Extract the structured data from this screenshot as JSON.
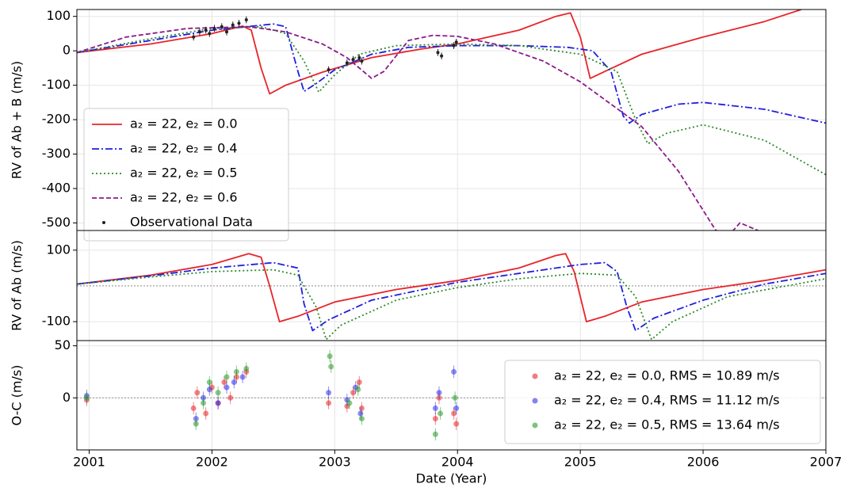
{
  "chart_data": [
    {
      "type": "line",
      "ylabel": "RV of Ab + B (m/s)",
      "xlim": [
        2000.9,
        2007
      ],
      "xticks": [
        2001,
        2002,
        2003,
        2004,
        2005,
        2006,
        2007
      ],
      "ylim": [
        -522,
        120
      ],
      "yticks": [
        -500,
        -400,
        -300,
        -200,
        -100,
        0,
        100
      ],
      "grid": true,
      "legend": "upper left",
      "series": [
        {
          "name": "a₂ = 22, e₂ = 0.0",
          "color": "#e8242a",
          "style": "solid",
          "x": [
            2000.9,
            2001.5,
            2002.0,
            2002.25,
            2002.32,
            2002.4,
            2002.47,
            2002.6,
            2002.9,
            2003.3,
            2003.7,
            2004.0,
            2004.5,
            2004.8,
            2004.92,
            2005.0,
            2005.08,
            2005.2,
            2005.5,
            2006.0,
            2006.5,
            2006.8
          ],
          "values": [
            -5,
            20,
            50,
            72,
            60,
            -50,
            -125,
            -100,
            -62,
            -20,
            5,
            20,
            60,
            100,
            110,
            40,
            -80,
            -60,
            -10,
            40,
            85,
            120
          ]
        },
        {
          "name": "a₂ = 22, e₂ = 0.4",
          "color": "#1f1fe0",
          "style": "dashdot",
          "x": [
            2000.9,
            2001.5,
            2002.0,
            2002.5,
            2002.6,
            2002.7,
            2002.75,
            2002.85,
            2003.0,
            2003.3,
            2003.6,
            2004.0,
            2004.5,
            2004.9,
            2005.1,
            2005.25,
            2005.35,
            2005.4,
            2005.5,
            2005.8,
            2006.0,
            2006.5,
            2007.0
          ],
          "values": [
            -5,
            30,
            60,
            78,
            70,
            -60,
            -118,
            -95,
            -55,
            -10,
            10,
            15,
            15,
            10,
            0,
            -60,
            -190,
            -210,
            -185,
            -155,
            -150,
            -170,
            -210
          ]
        },
        {
          "name": "a₂ = 22, e₂ = 0.5",
          "color": "#2a8a2a",
          "style": "dotted",
          "x": [
            2000.9,
            2001.5,
            2002.0,
            2002.4,
            2002.6,
            2002.75,
            2002.87,
            2003.0,
            2003.2,
            2003.5,
            2004.0,
            2004.5,
            2005.0,
            2005.3,
            2005.45,
            2005.55,
            2005.7,
            2006.0,
            2006.5,
            2007.0
          ],
          "values": [
            -5,
            35,
            65,
            70,
            50,
            -30,
            -120,
            -70,
            -10,
            15,
            20,
            15,
            -10,
            -60,
            -200,
            -270,
            -240,
            -215,
            -260,
            -360
          ]
        },
        {
          "name": "a₂ = 22, e₂ = 0.6",
          "color": "#8b1a8b",
          "style": "dashed",
          "x": [
            2000.9,
            2001.3,
            2001.8,
            2002.3,
            2002.6,
            2002.9,
            2003.1,
            2003.3,
            2003.4,
            2003.6,
            2003.8,
            2004.0,
            2004.3,
            2004.7,
            2005.0,
            2005.5,
            2005.8,
            2006.1,
            2006.2,
            2006.3,
            2006.5
          ],
          "values": [
            -5,
            40,
            65,
            70,
            55,
            20,
            -20,
            -80,
            -60,
            30,
            45,
            42,
            20,
            -30,
            -90,
            -220,
            -350,
            -520,
            -540,
            -500,
            -530
          ]
        },
        {
          "name": "Observational Data",
          "color": "#222222",
          "style": "points",
          "x": [
            2001.85,
            2001.9,
            2001.95,
            2001.98,
            2002.02,
            2002.08,
            2002.12,
            2002.17,
            2002.22,
            2002.28,
            2002.95,
            2003.1,
            2003.15,
            2003.2,
            2003.22,
            2003.84,
            2003.87,
            2003.97,
            2003.99
          ],
          "values": [
            40,
            55,
            60,
            50,
            65,
            70,
            55,
            75,
            80,
            90,
            -55,
            -35,
            -25,
            -20,
            -30,
            -5,
            -15,
            15,
            25
          ],
          "errors": [
            10,
            10,
            10,
            10,
            10,
            10,
            10,
            10,
            10,
            10,
            10,
            10,
            10,
            10,
            10,
            10,
            10,
            10,
            10
          ]
        }
      ]
    },
    {
      "type": "line",
      "ylabel": "RV of Ab (m/s)",
      "xlim": [
        2000.9,
        2007
      ],
      "xticks": [
        2001,
        2002,
        2003,
        2004,
        2005,
        2006,
        2007
      ],
      "ylim": [
        -153,
        155
      ],
      "yticks": [
        -100,
        100
      ],
      "grid": true,
      "zero_line": 0,
      "series": [
        {
          "name": "a₂ = 22, e₂ = 0.0",
          "color": "#e8242a",
          "style": "solid",
          "x": [
            2000.9,
            2001.5,
            2002.0,
            2002.3,
            2002.4,
            2002.47,
            2002.55,
            2002.7,
            2003.0,
            2003.5,
            2004.0,
            2004.5,
            2004.8,
            2004.88,
            2004.95,
            2005.05,
            2005.2,
            2005.5,
            2006.0,
            2006.5,
            2007.0
          ],
          "values": [
            5,
            30,
            60,
            90,
            80,
            0,
            -100,
            -85,
            -45,
            -10,
            15,
            50,
            85,
            90,
            40,
            -100,
            -85,
            -45,
            -10,
            15,
            45
          ]
        },
        {
          "name": "a₂ = 22, e₂ = 0.4",
          "color": "#1f1fe0",
          "style": "dashdot",
          "x": [
            2000.9,
            2001.5,
            2002.0,
            2002.5,
            2002.7,
            2002.75,
            2002.82,
            2002.95,
            2003.3,
            2004.0,
            2004.5,
            2005.0,
            2005.2,
            2005.3,
            2005.38,
            2005.45,
            2005.6,
            2006.0,
            2006.5,
            2007.0
          ],
          "values": [
            5,
            28,
            50,
            65,
            50,
            -50,
            -125,
            -95,
            -40,
            10,
            35,
            60,
            65,
            40,
            -60,
            -125,
            -90,
            -40,
            5,
            35
          ]
        },
        {
          "name": "a₂ = 22, e₂ = 0.5",
          "color": "#2a8a2a",
          "style": "dotted",
          "x": [
            2000.9,
            2001.5,
            2002.0,
            2002.5,
            2002.7,
            2002.85,
            2002.93,
            2003.05,
            2003.5,
            2004.0,
            2004.5,
            2005.0,
            2005.3,
            2005.45,
            2005.58,
            2005.75,
            2006.2,
            2007.0
          ],
          "values": [
            5,
            25,
            40,
            45,
            30,
            -60,
            -150,
            -110,
            -40,
            -5,
            20,
            35,
            30,
            -30,
            -150,
            -100,
            -30,
            20
          ]
        }
      ]
    },
    {
      "type": "scatter",
      "ylabel": "O-C (m/s)",
      "xlabel": "Date (Year)",
      "xlim": [
        2000.9,
        2007
      ],
      "xticks": [
        2001,
        2002,
        2003,
        2004,
        2005,
        2006,
        2007
      ],
      "ylim": [
        -50,
        55
      ],
      "yticks": [
        0,
        50
      ],
      "grid": true,
      "zero_line": 0,
      "legend": "lower right",
      "series": [
        {
          "name": "a₂ = 22, e₂ = 0.0, RMS = 10.89 m/s",
          "color": "#e8242a",
          "style": "points",
          "x": [
            2000.98,
            2001.85,
            2001.88,
            2001.95,
            2002.0,
            2002.05,
            2002.1,
            2002.15,
            2002.2,
            2002.28,
            2002.95,
            2003.1,
            2003.15,
            2003.2,
            2003.22,
            2003.82,
            2003.85,
            2003.97,
            2003.99
          ],
          "values": [
            -2,
            -10,
            5,
            -15,
            10,
            -5,
            15,
            0,
            20,
            25,
            -5,
            -8,
            5,
            15,
            -10,
            -20,
            0,
            -15,
            -25
          ],
          "errors": [
            6,
            6,
            6,
            6,
            6,
            6,
            6,
            6,
            6,
            6,
            6,
            6,
            6,
            6,
            6,
            6,
            6,
            6,
            6
          ]
        },
        {
          "name": "a₂ = 22, e₂ = 0.4, RMS = 11.12 m/s",
          "color": "#3030e8",
          "style": "points",
          "x": [
            2000.98,
            2001.87,
            2001.93,
            2001.98,
            2002.05,
            2002.12,
            2002.18,
            2002.25,
            2002.95,
            2003.1,
            2003.17,
            2003.21,
            2003.82,
            2003.85,
            2003.97,
            2003.99
          ],
          "values": [
            2,
            -20,
            0,
            8,
            -5,
            10,
            15,
            20,
            5,
            -2,
            10,
            -15,
            -10,
            5,
            25,
            -10
          ],
          "errors": [
            6,
            6,
            6,
            6,
            6,
            6,
            6,
            6,
            6,
            6,
            6,
            6,
            6,
            6,
            6,
            6
          ]
        },
        {
          "name": "a₂ = 22, e₂ = 0.5, RMS = 13.64 m/s",
          "color": "#2a9a2a",
          "style": "points",
          "x": [
            2000.98,
            2001.87,
            2001.93,
            2001.98,
            2002.05,
            2002.12,
            2002.2,
            2002.28,
            2002.96,
            2002.97,
            2003.12,
            2003.19,
            2003.22,
            2003.82,
            2003.86,
            2003.98
          ],
          "values": [
            0,
            -25,
            -5,
            15,
            5,
            20,
            25,
            28,
            40,
            30,
            -5,
            8,
            -20,
            -35,
            -15,
            0
          ],
          "errors": [
            6,
            6,
            6,
            6,
            6,
            6,
            6,
            6,
            6,
            6,
            6,
            6,
            6,
            6,
            6,
            6
          ]
        }
      ]
    }
  ]
}
